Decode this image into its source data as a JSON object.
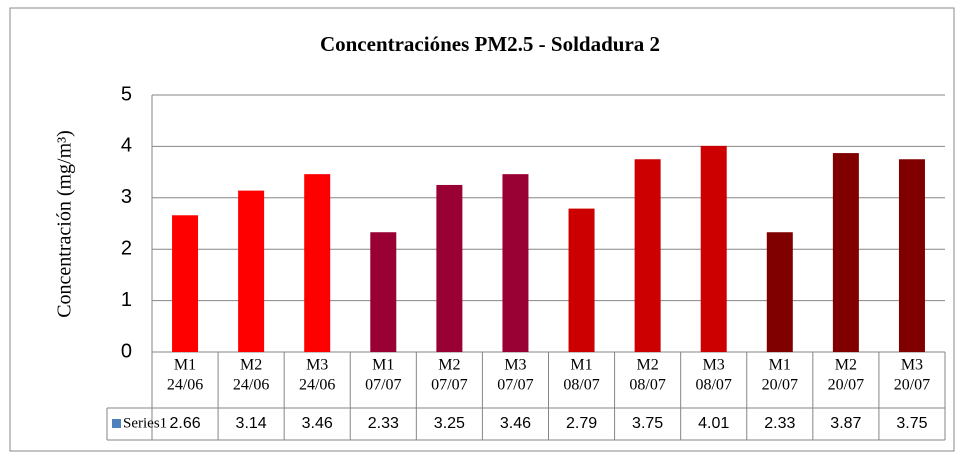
{
  "chart_data": {
    "type": "bar",
    "title": "Concentraciónes  PM2.5 - Soldadura 2",
    "y_label": "Concentración (mg/m³)",
    "categories": [
      [
        "M1",
        "24/06"
      ],
      [
        "M2",
        "24/06"
      ],
      [
        "M3",
        "24/06"
      ],
      [
        "M1",
        "07/07"
      ],
      [
        "M2",
        "07/07"
      ],
      [
        "M3",
        "07/07"
      ],
      [
        "M1",
        "08/07"
      ],
      [
        "M2",
        "08/07"
      ],
      [
        "M3",
        "08/07"
      ],
      [
        "M1",
        "20/07"
      ],
      [
        "M2",
        "20/07"
      ],
      [
        "M3",
        "20/07"
      ]
    ],
    "series": [
      {
        "name": "Series1",
        "legend_color": "#4f81bd",
        "colors": [
          "#ff0000",
          "#ff0000",
          "#ff0000",
          "#990033",
          "#990033",
          "#990033",
          "#cc0000",
          "#cc0000",
          "#cc0000",
          "#800000",
          "#800000",
          "#800000"
        ],
        "values": [
          2.66,
          3.14,
          3.46,
          2.33,
          3.25,
          3.46,
          2.79,
          3.75,
          4.01,
          2.33,
          3.87,
          3.75
        ]
      }
    ],
    "ylim": [
      0,
      5
    ],
    "yticks": [
      0,
      1,
      2,
      3,
      4,
      5
    ],
    "grid": true
  }
}
